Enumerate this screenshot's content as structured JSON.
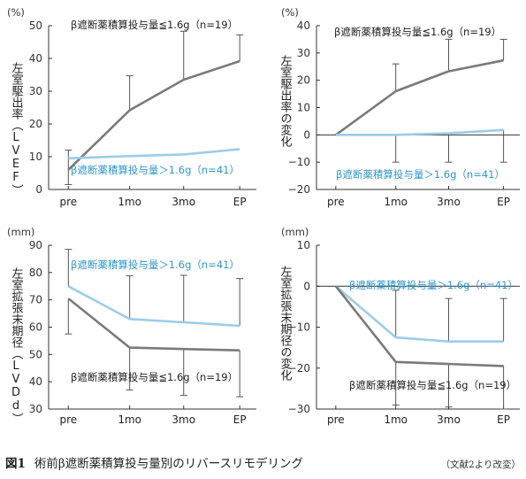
{
  "colors": {
    "low": "#7a7a7a",
    "high": "#9ccce9",
    "high_text": "#2f95cc",
    "axis": "#333333"
  },
  "caption": {
    "number": "図1",
    "title": "術前β遮断薬積算投与量別のリバースリモデリング",
    "source": "（文献2より改変）"
  },
  "chart_data": [
    {
      "type": "line",
      "unit": "(%)",
      "ylabel": "左室駆出率（LVEF）",
      "categories": [
        "pre",
        "1mo",
        "3mo",
        "EP"
      ],
      "yticks": [
        0,
        10,
        20,
        30,
        40,
        50
      ],
      "ylim": [
        0,
        50
      ],
      "grid": false,
      "series": [
        {
          "name": "β遮断薬積算投与量≦1.6g（n=19）",
          "values": [
            6,
            24.2,
            33.5,
            39.2
          ],
          "err_up": [
            6,
            10.5,
            14.8,
            8
          ],
          "err_down": [
            4.5,
            0,
            0,
            0
          ]
        },
        {
          "name": "β遮断薬積算投与量＞1.6g（n=41）",
          "values": [
            9.5,
            10.2,
            10.7,
            12.3
          ],
          "err_up": [
            0,
            0,
            0,
            0
          ],
          "err_down": [
            0,
            0,
            0,
            0
          ]
        }
      ]
    },
    {
      "type": "line",
      "unit": "(%)",
      "ylabel": "左室駆出率の変化",
      "categories": [
        "pre",
        "1mo",
        "3mo",
        "EP"
      ],
      "yticks": [
        -20,
        -10,
        0,
        10,
        20,
        30,
        40
      ],
      "ylim": [
        -20,
        40
      ],
      "grid": false,
      "series": [
        {
          "name": "β遮断薬積算投与量≦1.6g（n=19）",
          "values": [
            0,
            16,
            23.3,
            27.3
          ],
          "err_up": [
            0,
            10,
            11.7,
            7.7
          ],
          "err_down": [
            0,
            0,
            0,
            0
          ]
        },
        {
          "name": "β遮断薬積算投与量＞1.6g（n=41）",
          "values": [
            0,
            0,
            0.6,
            1.8
          ],
          "err_up": [
            0,
            0,
            0,
            0
          ],
          "err_down": [
            0,
            10,
            10.6,
            11.8
          ]
        }
      ]
    },
    {
      "type": "line",
      "unit": "(mm)",
      "ylabel": "左室拡張末期径（LVDd）",
      "categories": [
        "pre",
        "1mo",
        "3mo",
        "EP"
      ],
      "yticks": [
        30,
        40,
        50,
        60,
        70,
        80,
        90
      ],
      "ylim": [
        30,
        90
      ],
      "grid": false,
      "series": [
        {
          "name": "β遮断薬積算投与量＞1.6g（n=41）",
          "values": [
            75,
            63,
            61.8,
            60.5
          ],
          "err_up": [
            13.5,
            15.8,
            17.2,
            17.3
          ],
          "err_down": [
            0,
            0,
            0,
            0
          ]
        },
        {
          "name": "β遮断薬積算投与量≦1.6g（n=19）",
          "values": [
            70.5,
            52.5,
            52,
            51.5
          ],
          "err_up": [
            0,
            0,
            0,
            0
          ],
          "err_down": [
            13,
            15.5,
            17,
            17
          ]
        }
      ]
    },
    {
      "type": "line",
      "unit": "(mm)",
      "ylabel": "左室拡張末期径の変化",
      "categories": [
        "pre",
        "1mo",
        "3mo",
        "EP"
      ],
      "yticks": [
        -30,
        -20,
        -10,
        0,
        10
      ],
      "ylim": [
        -30,
        10
      ],
      "grid": false,
      "series": [
        {
          "name": "β遮断薬積算投与量＞1.6g（n=41）",
          "values": [
            0,
            -12.5,
            -13.5,
            -13.5
          ],
          "err_up": [
            0,
            11.5,
            10.5,
            10.5
          ],
          "err_down": [
            0,
            0,
            0,
            0
          ]
        },
        {
          "name": "β遮断薬積算投与量≦1.6g（n=19）",
          "values": [
            0,
            -18.5,
            -19,
            -19.5
          ],
          "err_up": [
            0,
            0,
            0,
            0
          ],
          "err_down": [
            0,
            10.5,
            10.5,
            10.5
          ]
        }
      ]
    }
  ]
}
